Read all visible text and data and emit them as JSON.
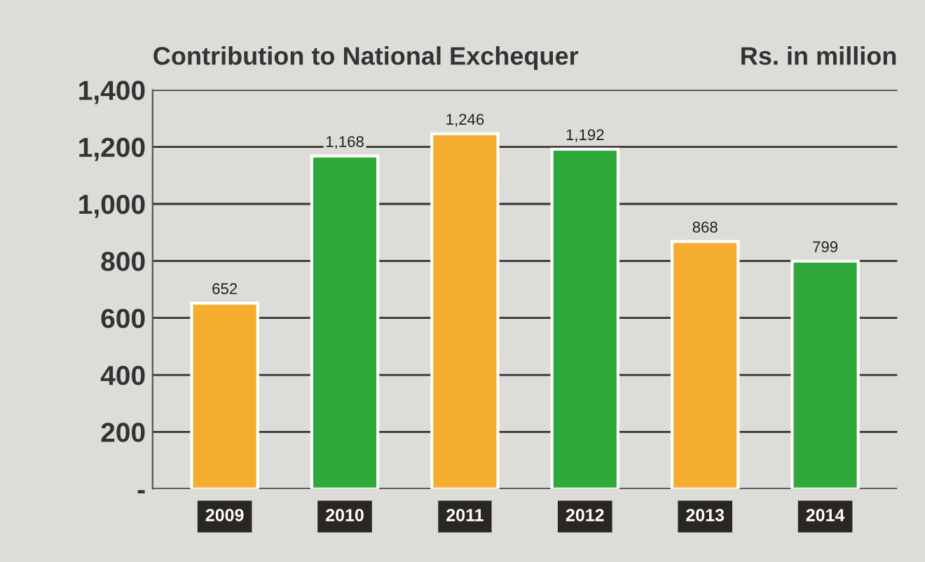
{
  "chart_data": {
    "type": "bar",
    "title": "Contribution to National Exchequer",
    "ylabel": "Rs. in million",
    "categories": [
      "2009",
      "2010",
      "2011",
      "2012",
      "2013",
      "2014"
    ],
    "values": [
      652,
      1168,
      1246,
      1192,
      868,
      799
    ],
    "colors": [
      "#f5ad2f",
      "#2fa83a",
      "#f5ad2f",
      "#2fa83a",
      "#f5ad2f",
      "#2fa83a"
    ],
    "value_labels": [
      "652",
      "1,168",
      "1,246",
      "1,192",
      "868",
      "799"
    ],
    "ylim": [
      0,
      1400
    ],
    "yticks": [
      {
        "value": 0,
        "label": "-"
      },
      {
        "value": 200,
        "label": "200"
      },
      {
        "value": 400,
        "label": "400"
      },
      {
        "value": 600,
        "label": "600"
      },
      {
        "value": 800,
        "label": "800"
      },
      {
        "value": 1000,
        "label": "1,000"
      },
      {
        "value": 1200,
        "label": "1,200"
      },
      {
        "value": 1400,
        "label": "1,400"
      }
    ],
    "grid": "y"
  }
}
